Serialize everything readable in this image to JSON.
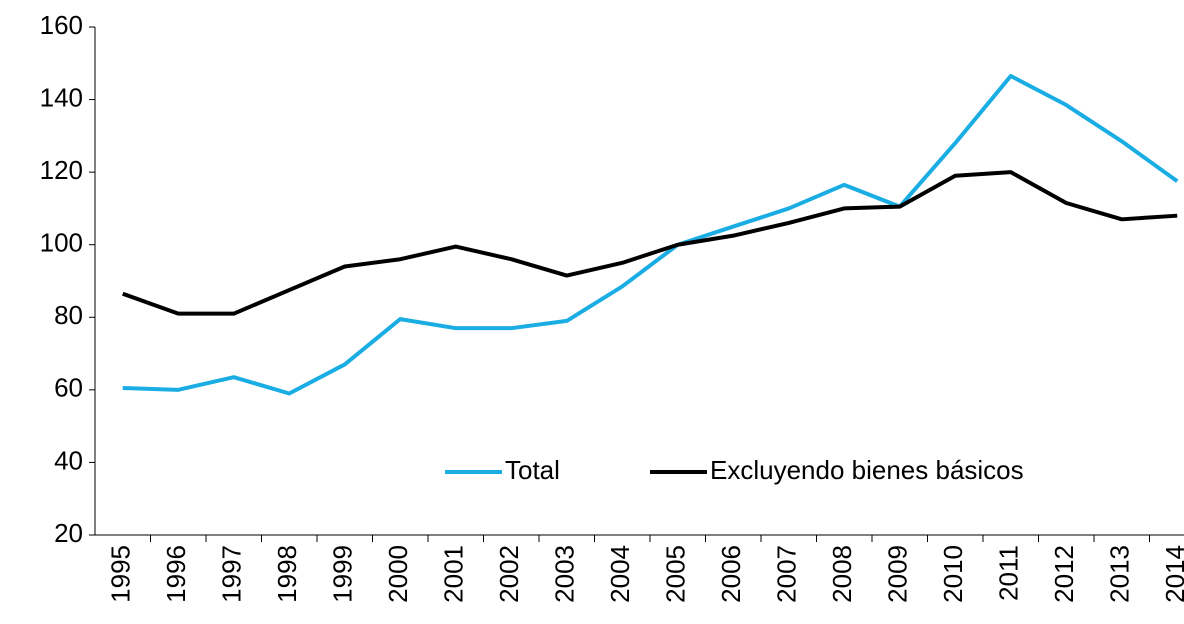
{
  "chart_data": {
    "type": "line",
    "categories": [
      "1995",
      "1996",
      "1997",
      "1998",
      "1999",
      "2000",
      "2001",
      "2002",
      "2003",
      "2004",
      "2005",
      "2006",
      "2007",
      "2008",
      "2009",
      "2010",
      "2011",
      "2012",
      "2013",
      "2014"
    ],
    "series": [
      {
        "name": "Total",
        "color": "#1aade4",
        "values": [
          60.5,
          60,
          63.5,
          59,
          67,
          79.5,
          77,
          77,
          79,
          88.5,
          100,
          105,
          110,
          116.5,
          110.5,
          128,
          146.5,
          138.5,
          128.5,
          117.5
        ]
      },
      {
        "name": "Excluyendo bienes básicos",
        "color": "#000000",
        "values": [
          86.5,
          81,
          81,
          87.5,
          94,
          96,
          99.5,
          96,
          91.5,
          95,
          100,
          102.5,
          106,
          110,
          110.5,
          119,
          120,
          111.5,
          107,
          108
        ]
      }
    ],
    "ylim": [
      20,
      160
    ],
    "yticks": [
      20,
      40,
      60,
      80,
      100,
      120,
      140,
      160
    ],
    "grid": false,
    "legend": "bottom"
  }
}
